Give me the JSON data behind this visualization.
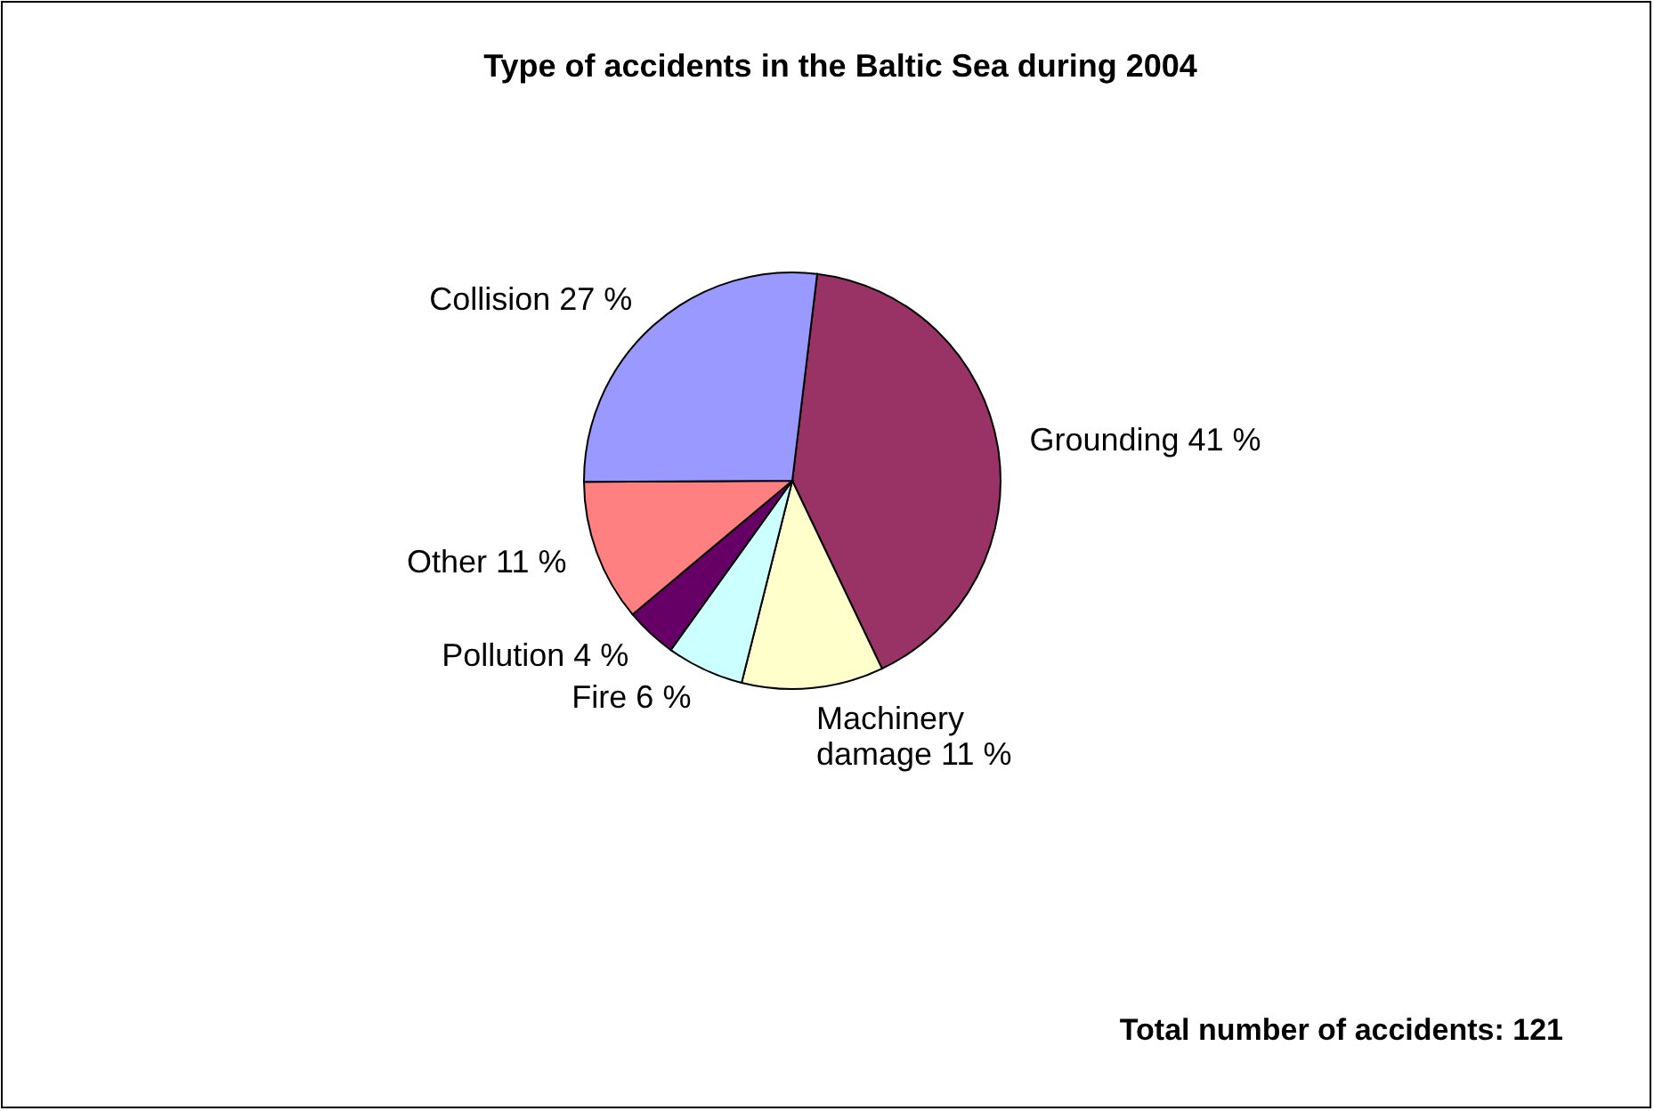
{
  "chart_data": {
    "type": "pie",
    "title": "Type of accidents in the Baltic Sea during 2004",
    "categories": [
      "Grounding",
      "Machinery damage",
      "Fire",
      "Pollution",
      "Other",
      "Collision"
    ],
    "values": [
      41,
      11,
      6,
      4,
      11,
      27
    ],
    "value_labels": [
      "41 %",
      "11 %",
      "6 %",
      "4 %",
      "11 %",
      "27 %"
    ],
    "colors": [
      "#993366",
      "#ffffcc",
      "#ccffff",
      "#660066",
      "#ff8080",
      "#9999ff"
    ],
    "annotations": [
      "Total number of accidents: 121"
    ]
  }
}
